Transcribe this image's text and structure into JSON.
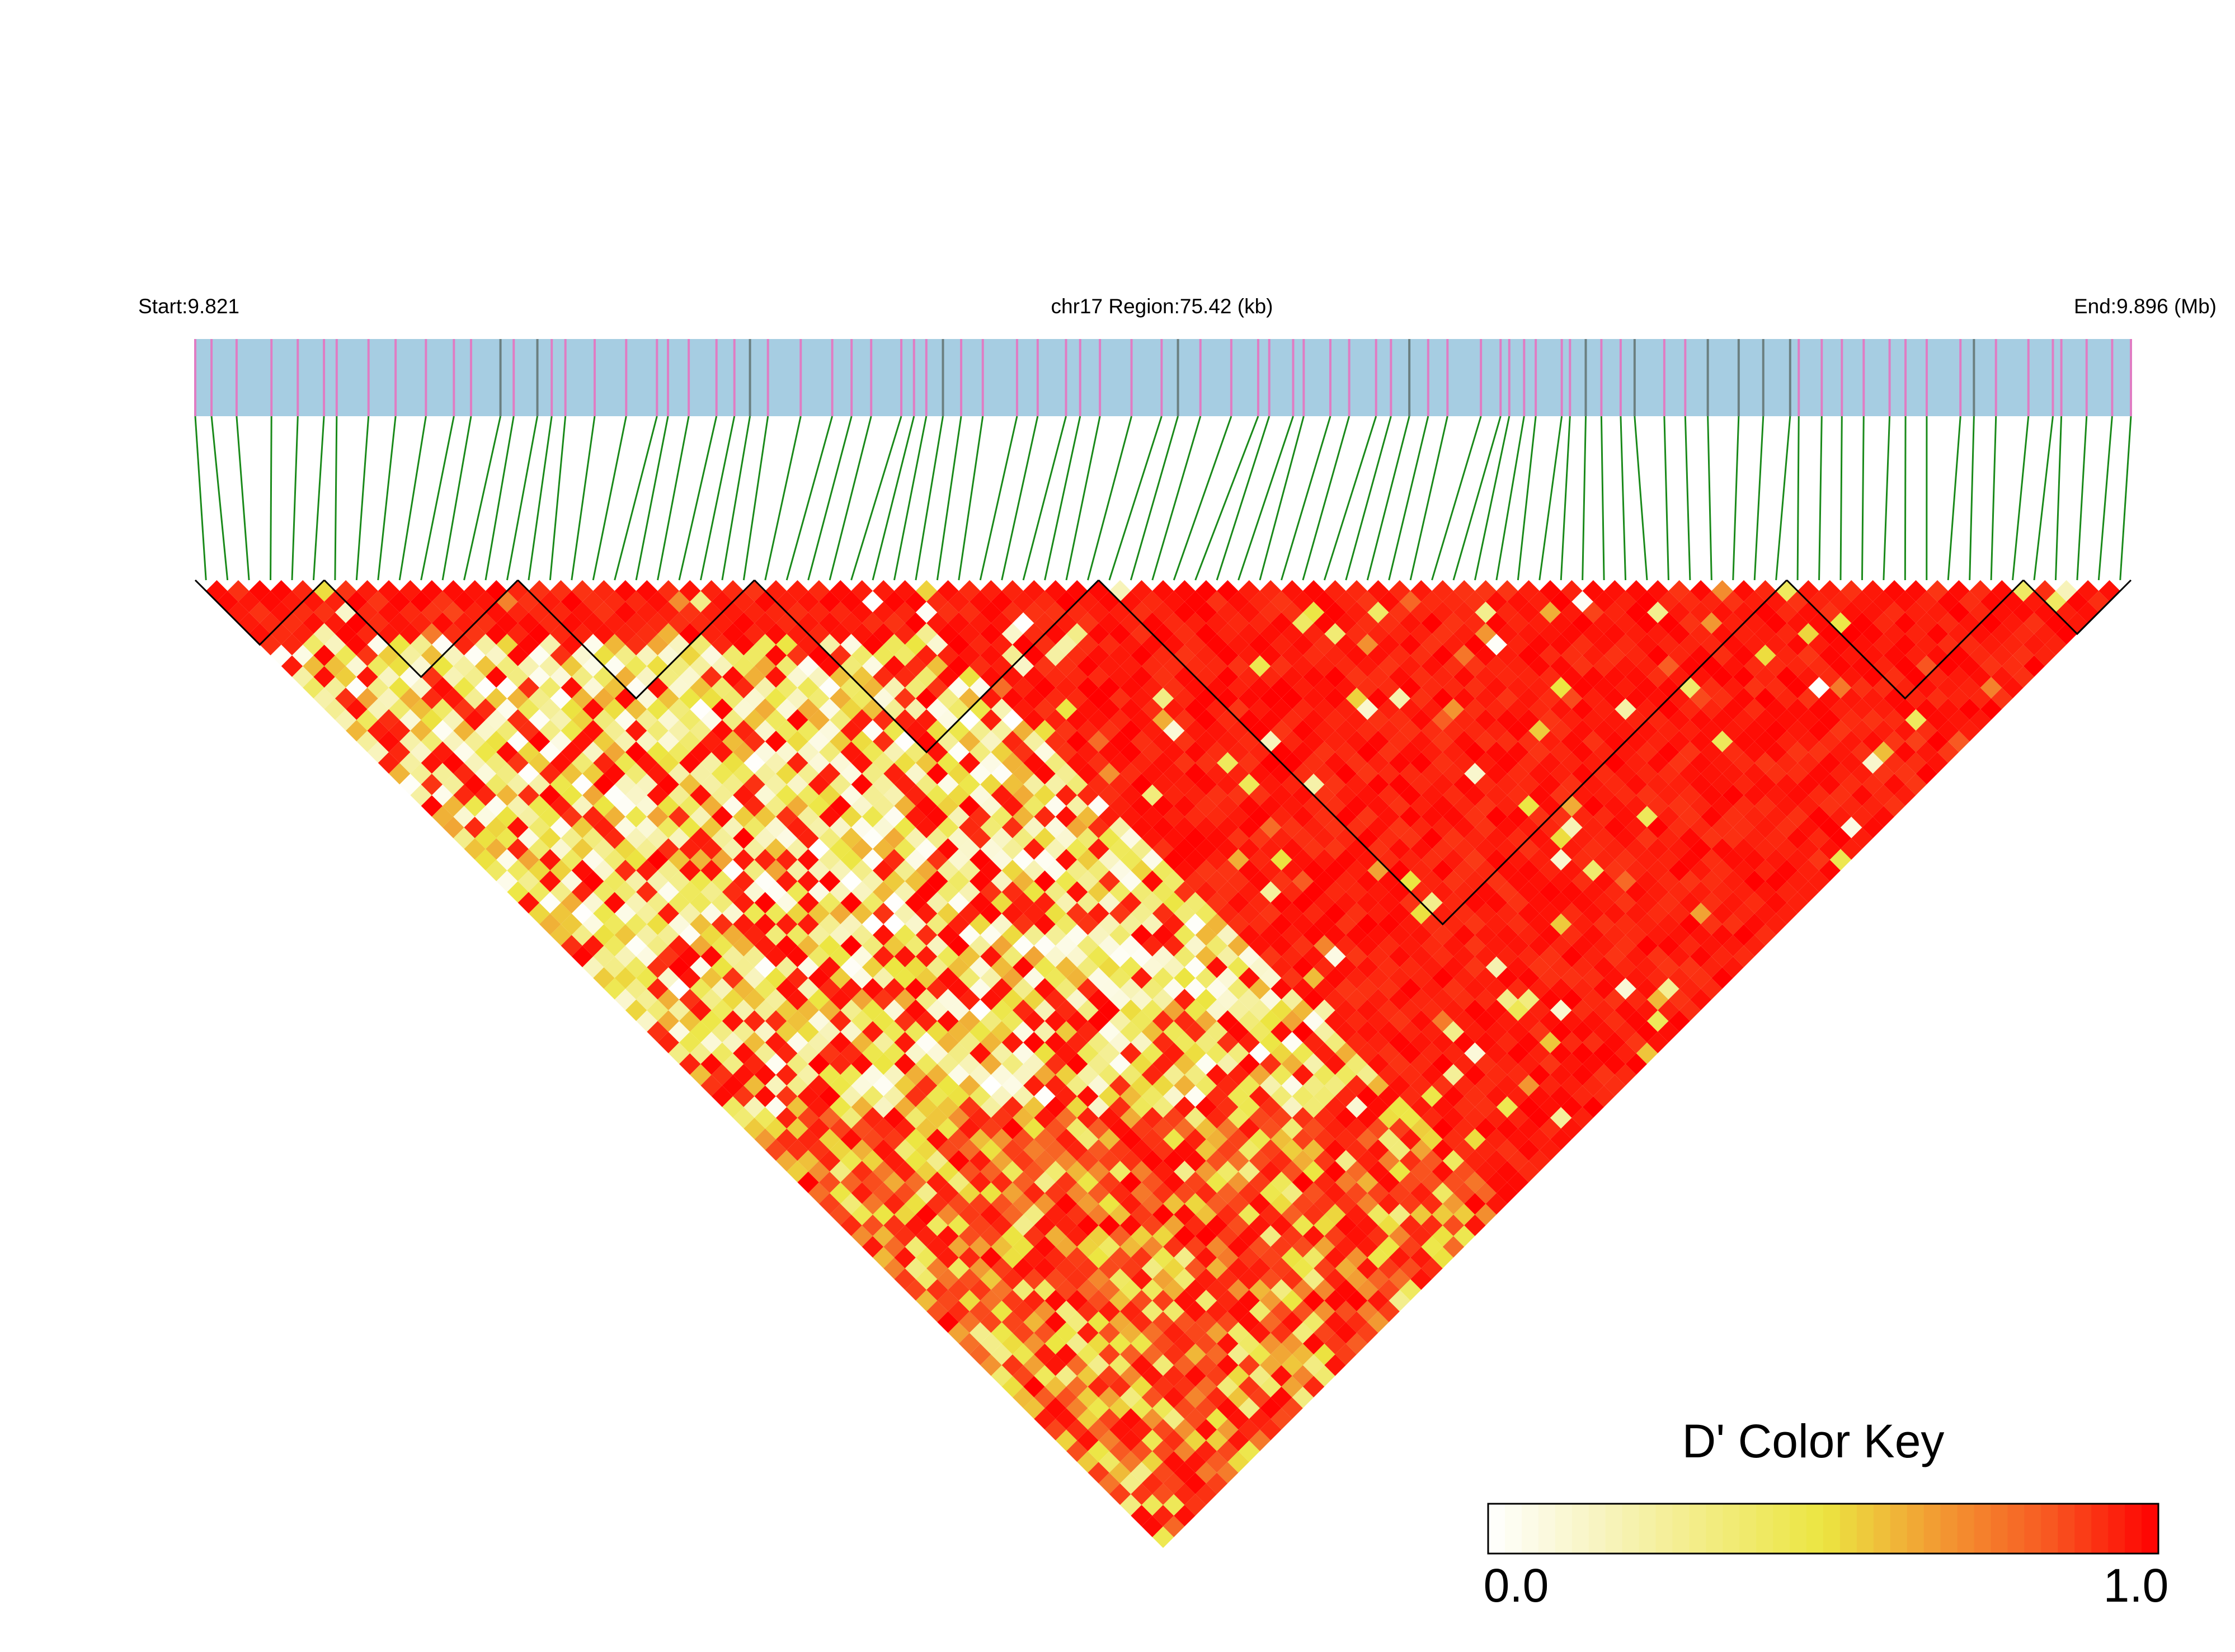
{
  "header": {
    "start": "Start:9.821",
    "region": "chr17 Region:75.42 (kb)",
    "end": "End:9.896 (Mb)"
  },
  "color_key": {
    "title": "D' Color Key",
    "range": [
      0,
      1
    ],
    "ticks": [
      {
        "value": 0,
        "label": "0.0"
      },
      {
        "value": 1,
        "label": "1.0"
      }
    ],
    "colors": [
      "#ffffff",
      "#f8f4c0",
      "#f2ec80",
      "#ece641",
      "#f29c33",
      "#f85a22",
      "#ff0000"
    ]
  }
}
